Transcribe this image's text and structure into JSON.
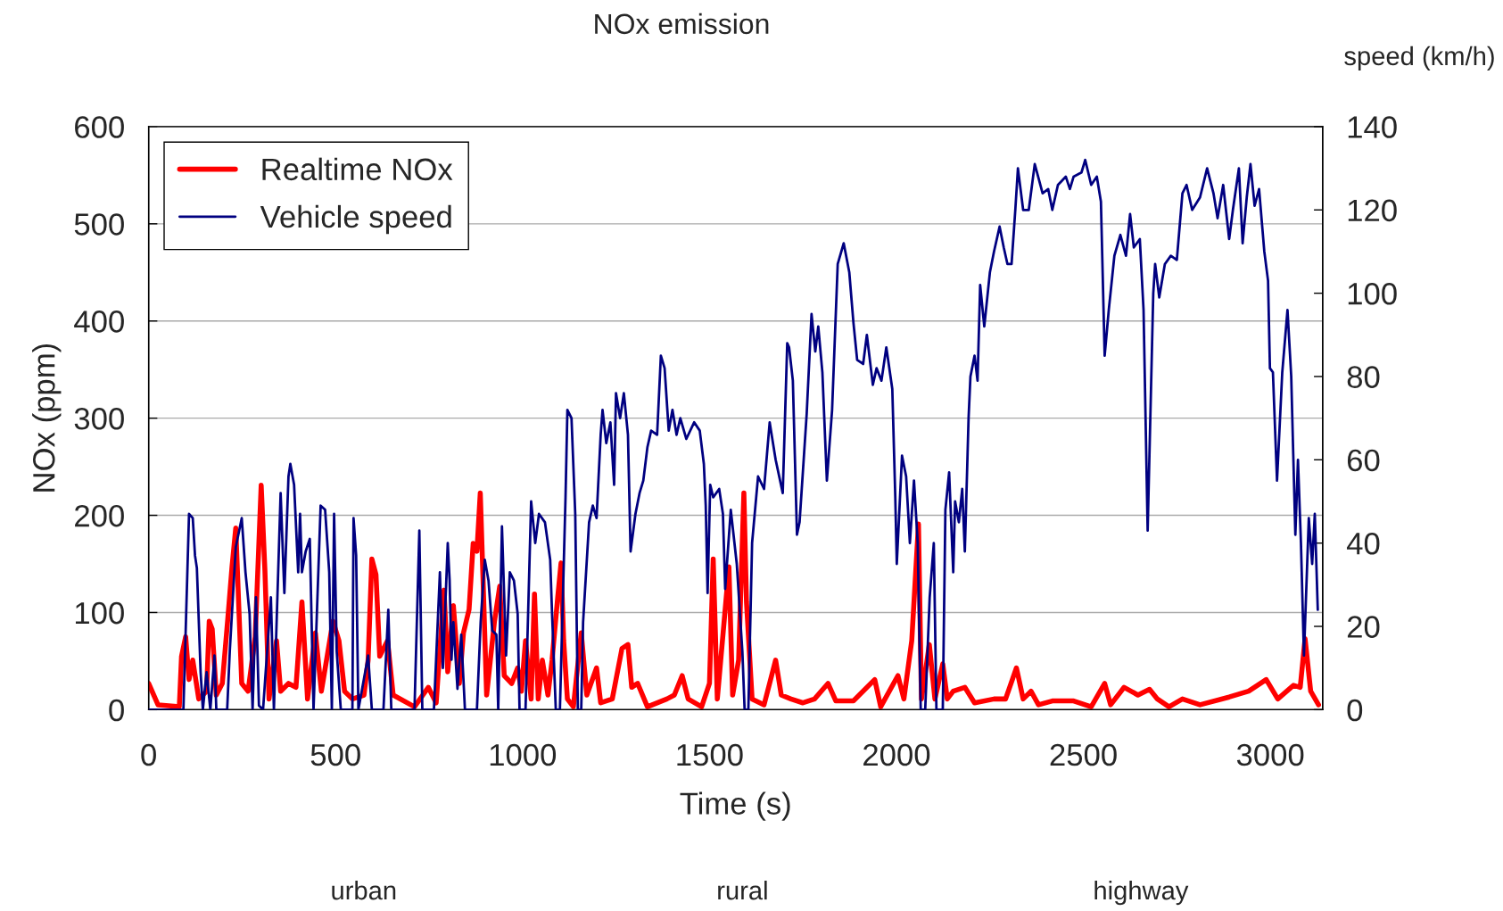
{
  "chart_data": {
    "type": "line",
    "title": "NOx emission",
    "xlabel": "Time (s)",
    "ylabel": "NOx (ppm)",
    "y2label": "speed (km/h)",
    "annotations": [
      "urban",
      "rural",
      "highway"
    ],
    "xlim": [
      0,
      3140
    ],
    "xticks": [
      0,
      500,
      1000,
      1500,
      2000,
      2500,
      3000
    ],
    "ylim": [
      0,
      600
    ],
    "yticks": [
      0,
      100,
      200,
      300,
      400,
      500,
      600
    ],
    "y2lim": [
      0,
      140
    ],
    "y2ticks": [
      0,
      20,
      40,
      60,
      80,
      100,
      120,
      140
    ],
    "grid": "y",
    "legend": "top left",
    "marker": "none",
    "line_style": "solid",
    "series": [
      {
        "name": "Realtime NOx",
        "color": "#ff0000",
        "x": [
          0,
          25,
          82,
          88,
          99,
          108,
          118,
          134,
          155,
          162,
          170,
          181,
          197,
          212,
          223,
          233,
          249,
          266,
          285,
          301,
          311,
          322,
          342,
          353,
          374,
          394,
          410,
          425,
          446,
          462,
          493,
          509,
          524,
          545,
          576,
          587,
          597,
          608,
          618,
          639,
          654,
          711,
          748,
          769,
          790,
          800,
          815,
          831,
          842,
          857,
          868,
          878,
          887,
          894,
          904,
          925,
          939,
          951,
          971,
          987,
          997,
          1008,
          1023,
          1032,
          1042,
          1053,
          1068,
          1079,
          1094,
          1103,
          1110,
          1120,
          1136,
          1157,
          1172,
          1198,
          1209,
          1240,
          1266,
          1282,
          1292,
          1308,
          1334,
          1386,
          1406,
          1427,
          1443,
          1479,
          1500,
          1510,
          1521,
          1552,
          1562,
          1578,
          1592,
          1599,
          1614,
          1646,
          1677,
          1692,
          1718,
          1750,
          1781,
          1817,
          1838,
          1885,
          1942,
          1958,
          2004,
          2020,
          2041,
          2059,
          2067,
          2088,
          2103,
          2124,
          2136,
          2152,
          2183,
          2209,
          2261,
          2292,
          2321,
          2339,
          2360,
          2380,
          2417,
          2474,
          2521,
          2557,
          2573,
          2609,
          2646,
          2677,
          2698,
          2729,
          2765,
          2812,
          2890,
          2942,
          2989,
          3020,
          3062,
          3080,
          3093,
          3108,
          3129
        ],
        "values": [
          27,
          5,
          3,
          55,
          75,
          31,
          51,
          11,
          19,
          91,
          83,
          15,
          27,
          95,
          147,
          187,
          27,
          19,
          75,
          231,
          143,
          11,
          71,
          19,
          27,
          23,
          111,
          11,
          79,
          19,
          91,
          71,
          19,
          11,
          15,
          51,
          155,
          139,
          55,
          71,
          15,
          3,
          23,
          7,
          123,
          39,
          107,
          27,
          79,
          103,
          171,
          163,
          223,
          139,
          15,
          91,
          127,
          35,
          27,
          43,
          19,
          71,
          11,
          119,
          11,
          51,
          15,
          51,
          115,
          151,
          71,
          11,
          3,
          79,
          15,
          43,
          7,
          11,
          63,
          67,
          23,
          27,
          3,
          11,
          15,
          35,
          11,
          3,
          27,
          155,
          11,
          147,
          15,
          51,
          223,
          111,
          11,
          5,
          51,
          15,
          11,
          7,
          11,
          27,
          9,
          9,
          31,
          3,
          35,
          11,
          71,
          191,
          11,
          67,
          11,
          47,
          11,
          19,
          23,
          7,
          11,
          11,
          43,
          11,
          19,
          5,
          9,
          9,
          3,
          27,
          5,
          23,
          15,
          21,
          11,
          3,
          11,
          5,
          13,
          19,
          31,
          11,
          25,
          23,
          73,
          19,
          5
        ]
      },
      {
        "name": "Vehicle speed",
        "color": "#000080",
        "axis": "y2",
        "x": [
          0,
          93,
          108,
          118,
          124,
          129,
          139,
          145,
          155,
          165,
          176,
          181,
          210,
          217,
          233,
          249,
          259,
          270,
          278,
          287,
          295,
          306,
          327,
          335,
          353,
          363,
          374,
          379,
          389,
          400,
          405,
          410,
          420,
          431,
          441,
          460,
          472,
          483,
          490,
          496,
          503,
          514,
          545,
          548,
          555,
          561,
          587,
          597,
          628,
          641,
          649,
          711,
          724,
          732,
          763,
          779,
          787,
          800,
          805,
          810,
          815,
          826,
          836,
          846,
          878,
          888,
          899,
          909,
          919,
          930,
          935,
          945,
          956,
          966,
          977,
          987,
          992,
          1008,
          1023,
          1034,
          1044,
          1060,
          1074,
          1079,
          1089,
          1100,
          1115,
          1120,
          1131,
          1141,
          1148,
          1157,
          1162,
          1178,
          1188,
          1198,
          1209,
          1214,
          1224,
          1235,
          1245,
          1250,
          1261,
          1271,
          1282,
          1289,
          1302,
          1313,
          1323,
          1334,
          1344,
          1360,
          1370,
          1380,
          1391,
          1401,
          1412,
          1422,
          1438,
          1459,
          1474,
          1485,
          1490,
          1495,
          1502,
          1510,
          1526,
          1536,
          1542,
          1557,
          1573,
          1588,
          1594,
          1604,
          1614,
          1630,
          1646,
          1661,
          1677,
          1696,
          1708,
          1713,
          1723,
          1734,
          1741,
          1760,
          1773,
          1783,
          1791,
          1802,
          1814,
          1828,
          1843,
          1859,
          1874,
          1885,
          1895,
          1911,
          1921,
          1937,
          1947,
          1960,
          1973,
          1989,
          1997,
          2001,
          2015,
          2026,
          2036,
          2047,
          2057,
          2065,
          2077,
          2089,
          2100,
          2107,
          2124,
          2131,
          2141,
          2152,
          2157,
          2167,
          2176,
          2183,
          2193,
          2198,
          2209,
          2217,
          2224,
          2235,
          2250,
          2261,
          2276,
          2287,
          2297,
          2308,
          2318,
          2325,
          2339,
          2354,
          2370,
          2391,
          2406,
          2417,
          2432,
          2453,
          2464,
          2474,
          2495,
          2505,
          2521,
          2536,
          2547,
          2557,
          2568,
          2583,
          2599,
          2614,
          2625,
          2635,
          2651,
          2661,
          2672,
          2687,
          2692,
          2703,
          2718,
          2734,
          2750,
          2765,
          2776,
          2791,
          2812,
          2831,
          2848,
          2859,
          2874,
          2890,
          2900,
          2916,
          2926,
          2937,
          2947,
          2958,
          2970,
          2984,
          2994,
          2999,
          3007,
          3018,
          3032,
          3046,
          3056,
          3067,
          3074,
          3082,
          3090,
          3103,
          3112,
          3119,
          3127
        ],
        "values": [
          0,
          0,
          47,
          46,
          37,
          34,
          9,
          0,
          9,
          0,
          13,
          0,
          0,
          14,
          39,
          46,
          33,
          23,
          0,
          27,
          1,
          0,
          27,
          0,
          52,
          28,
          56,
          59,
          54,
          33,
          47,
          33,
          38,
          41,
          0,
          49,
          48,
          33,
          0,
          47,
          14,
          0,
          0,
          46,
          37,
          0,
          13,
          0,
          0,
          24,
          0,
          0,
          43,
          0,
          0,
          33,
          10,
          40,
          31,
          12,
          21,
          5,
          18,
          0,
          0,
          21,
          36,
          31,
          19,
          18,
          0,
          44,
          13,
          33,
          31,
          23,
          0,
          0,
          50,
          40,
          47,
          45,
          36,
          23,
          0,
          0,
          51,
          72,
          70,
          47,
          0,
          0,
          21,
          45,
          49,
          46,
          66,
          72,
          64,
          69,
          54,
          76,
          70,
          76,
          66,
          38,
          47,
          52,
          55,
          63,
          67,
          66,
          85,
          82,
          67,
          72,
          66,
          70,
          65,
          69,
          67,
          59,
          49,
          28,
          54,
          51,
          53,
          47,
          29,
          48,
          35,
          14,
          0,
          0,
          40,
          56,
          53,
          69,
          60,
          52,
          88,
          87,
          79,
          42,
          45,
          71,
          95,
          86,
          92,
          81,
          55,
          72,
          107,
          112,
          105,
          93,
          84,
          83,
          90,
          78,
          82,
          79,
          87,
          77,
          51,
          35,
          61,
          56,
          40,
          55,
          40,
          0,
          0,
          27,
          40,
          0,
          0,
          48,
          57,
          33,
          50,
          45,
          53,
          38,
          70,
          80,
          85,
          79,
          102,
          92,
          105,
          110,
          116,
          111,
          107,
          107,
          120,
          130,
          120,
          120,
          131,
          124,
          125,
          120,
          126,
          128,
          125,
          128,
          129,
          132,
          126,
          128,
          122,
          85,
          96,
          109,
          114,
          109,
          119,
          111,
          113,
          96,
          43,
          100,
          107,
          99,
          107,
          109,
          108,
          124,
          126,
          120,
          123,
          130,
          124,
          118,
          126,
          113,
          120,
          130,
          112,
          123,
          131,
          121,
          125,
          110,
          103,
          82,
          81,
          55,
          81,
          96,
          80,
          42,
          60,
          40,
          13,
          46,
          35,
          47,
          24
        ]
      }
    ]
  }
}
